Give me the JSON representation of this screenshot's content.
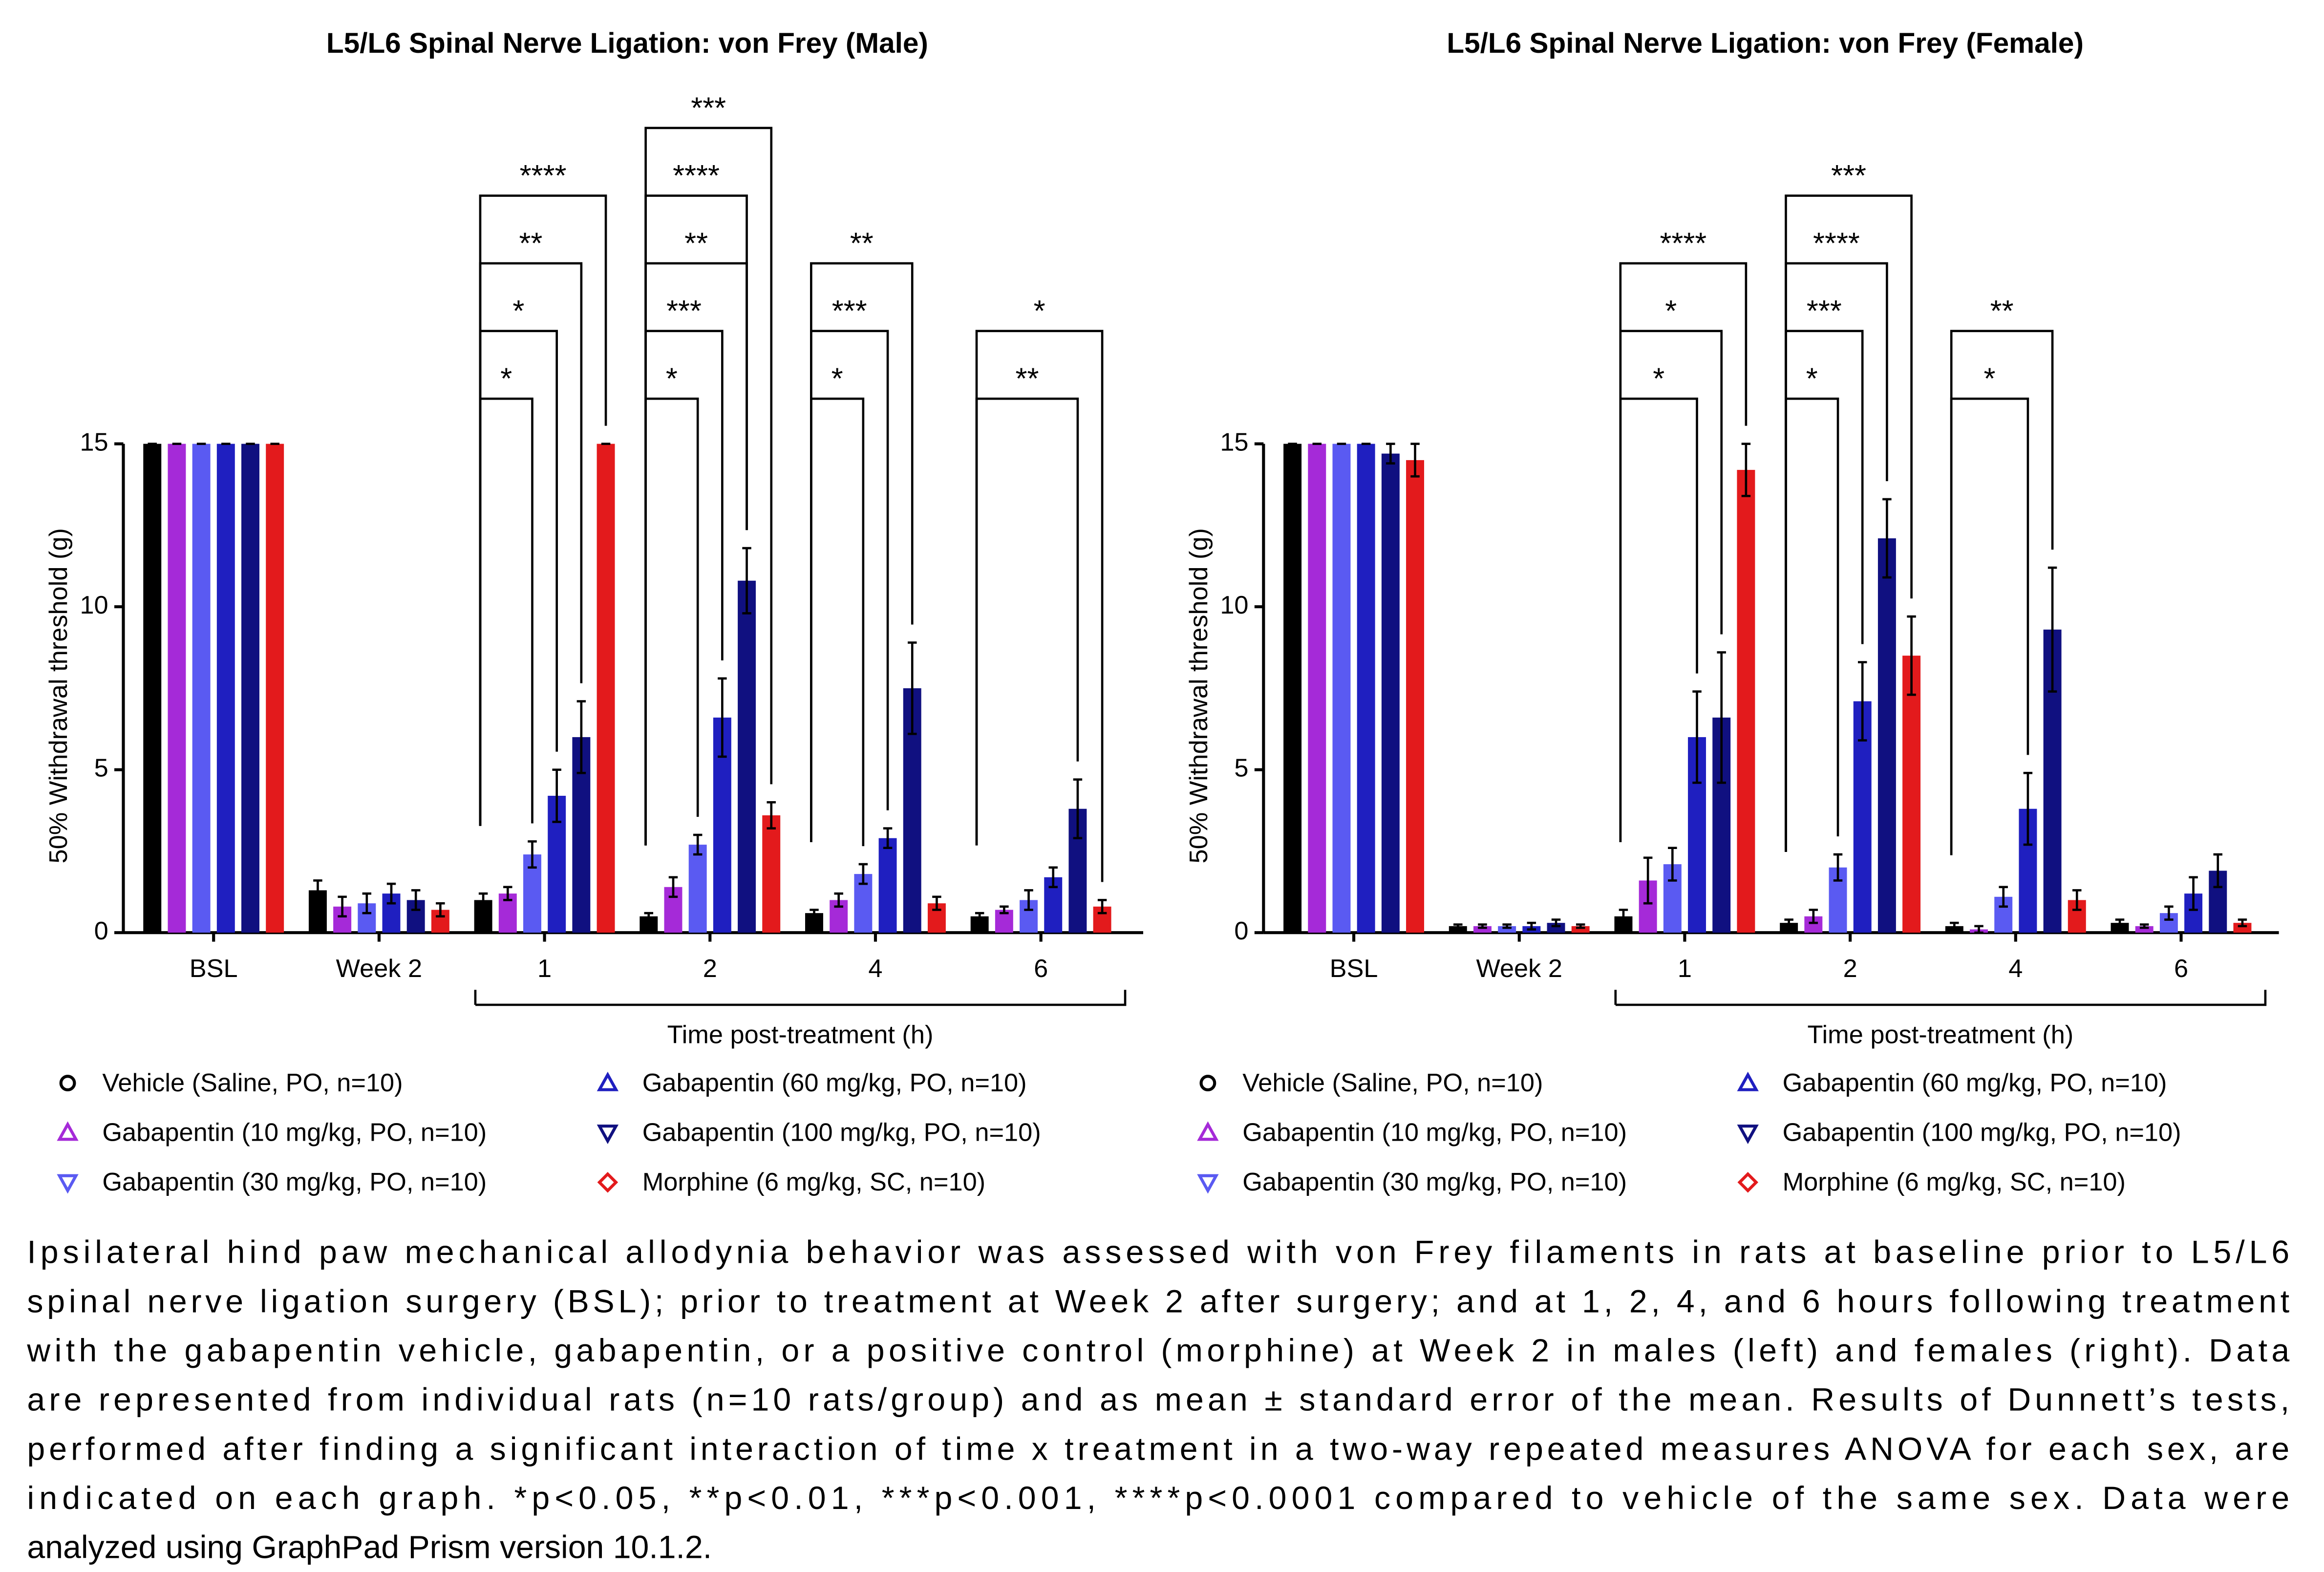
{
  "chart_data": [
    {
      "type": "bar",
      "title": "L5/L6 Spinal Nerve Ligation: von Frey (Male)",
      "ylabel": "50% Withdrawal threshold (g)",
      "xlabel": "Time post-treatment (h)",
      "categories": [
        "BSL",
        "Week 2",
        "1",
        "2",
        "4",
        "6"
      ],
      "ylim": [
        0,
        15
      ],
      "yticks": [
        0,
        5,
        10,
        15
      ],
      "series": [
        {
          "name": "Vehicle (Saline, PO, n=10)",
          "color": "#000000",
          "marker": "circle",
          "values": [
            15,
            1.3,
            1.0,
            0.5,
            0.6,
            0.5
          ],
          "errors": [
            0,
            0.3,
            0.2,
            0.1,
            0.1,
            0.1
          ]
        },
        {
          "name": "Gabapentin (10 mg/kg, PO, n=10)",
          "color": "#a52ad8",
          "marker": "triangle-up",
          "values": [
            15,
            0.8,
            1.2,
            1.4,
            1.0,
            0.7
          ],
          "errors": [
            0,
            0.3,
            0.2,
            0.3,
            0.2,
            0.1
          ]
        },
        {
          "name": "Gabapentin (30 mg/kg, PO, n=10)",
          "color": "#5a5af2",
          "marker": "triangle-down",
          "values": [
            15,
            0.9,
            2.4,
            2.7,
            1.8,
            1.0
          ],
          "errors": [
            0,
            0.3,
            0.4,
            0.3,
            0.3,
            0.3
          ]
        },
        {
          "name": "Gabapentin (60 mg/kg, PO, n=10)",
          "color": "#1f1fc0",
          "marker": "triangle-up",
          "values": [
            15,
            1.2,
            4.2,
            6.6,
            2.9,
            1.7
          ],
          "errors": [
            0,
            0.3,
            0.8,
            1.2,
            0.3,
            0.3
          ]
        },
        {
          "name": "Gabapentin (100 mg/kg, PO, n=10)",
          "color": "#101080",
          "marker": "triangle-down",
          "values": [
            15,
            1.0,
            6.0,
            10.8,
            7.5,
            3.8
          ],
          "errors": [
            0,
            0.3,
            1.1,
            1.0,
            1.4,
            0.9
          ]
        },
        {
          "name": "Morphine (6 mg/kg, SC, n=10)",
          "color": "#e31a1c",
          "marker": "diamond",
          "values": [
            15,
            0.7,
            15,
            3.6,
            0.9,
            0.8
          ],
          "errors": [
            0,
            0.2,
            0,
            0.4,
            0.2,
            0.2
          ]
        }
      ],
      "significance": [
        {
          "category": "1",
          "series": "Gabapentin (30 mg/kg, PO, n=10)",
          "label": "*"
        },
        {
          "category": "1",
          "series": "Gabapentin (60 mg/kg, PO, n=10)",
          "label": "*"
        },
        {
          "category": "1",
          "series": "Gabapentin (100 mg/kg, PO, n=10)",
          "label": "**"
        },
        {
          "category": "1",
          "series": "Morphine (6 mg/kg, SC, n=10)",
          "label": "****"
        },
        {
          "category": "2",
          "series": "Gabapentin (30 mg/kg, PO, n=10)",
          "label": "*"
        },
        {
          "category": "2",
          "series": "Gabapentin (60 mg/kg, PO, n=10)",
          "label": "***"
        },
        {
          "category": "2",
          "series": "Gabapentin (100 mg/kg, PO, n=10)",
          "label": "**"
        },
        {
          "category": "2",
          "series": "Gabapentin (100 mg/kg, PO, n=10)",
          "label": "****"
        },
        {
          "category": "2",
          "series": "Morphine (6 mg/kg, SC, n=10)",
          "label": "***"
        },
        {
          "category": "4",
          "series": "Gabapentin (30 mg/kg, PO, n=10)",
          "label": "*"
        },
        {
          "category": "4",
          "series": "Gabapentin (60 mg/kg, PO, n=10)",
          "label": "***"
        },
        {
          "category": "4",
          "series": "Gabapentin (100 mg/kg, PO, n=10)",
          "label": "**"
        },
        {
          "category": "6",
          "series": "Gabapentin (100 mg/kg, PO, n=10)",
          "label": "**"
        },
        {
          "category": "6",
          "series": "Morphine (6 mg/kg, SC, n=10)",
          "label": "*"
        }
      ]
    },
    {
      "type": "bar",
      "title": "L5/L6 Spinal Nerve Ligation: von Frey (Female)",
      "ylabel": "50% Withdrawal threshold (g)",
      "xlabel": "Time post-treatment (h)",
      "categories": [
        "BSL",
        "Week 2",
        "1",
        "2",
        "4",
        "6"
      ],
      "ylim": [
        0,
        15
      ],
      "yticks": [
        0,
        5,
        10,
        15
      ],
      "series": [
        {
          "name": "Vehicle (Saline, PO, n=10)",
          "color": "#000000",
          "marker": "circle",
          "values": [
            15,
            0.2,
            0.5,
            0.3,
            0.2,
            0.3
          ],
          "errors": [
            0,
            0.05,
            0.2,
            0.1,
            0.1,
            0.1
          ]
        },
        {
          "name": "Gabapentin (10 mg/kg, PO, n=10)",
          "color": "#a52ad8",
          "marker": "triangle-up",
          "values": [
            15,
            0.2,
            1.6,
            0.5,
            0.1,
            0.2
          ],
          "errors": [
            0,
            0.05,
            0.7,
            0.2,
            0.1,
            0.05
          ]
        },
        {
          "name": "Gabapentin (30 mg/kg, PO, n=10)",
          "color": "#5a5af2",
          "marker": "triangle-down",
          "values": [
            15,
            0.2,
            2.1,
            2.0,
            1.1,
            0.6
          ],
          "errors": [
            0,
            0.05,
            0.5,
            0.4,
            0.3,
            0.2
          ]
        },
        {
          "name": "Gabapentin (60 mg/kg, PO, n=10)",
          "color": "#1f1fc0",
          "marker": "triangle-up",
          "values": [
            15,
            0.2,
            6.0,
            7.1,
            3.8,
            1.2
          ],
          "errors": [
            0,
            0.1,
            1.4,
            1.2,
            1.1,
            0.5
          ]
        },
        {
          "name": "Gabapentin (100 mg/kg, PO, n=10)",
          "color": "#101080",
          "marker": "triangle-down",
          "values": [
            14.7,
            0.3,
            6.6,
            12.1,
            9.3,
            1.9
          ],
          "errors": [
            0.3,
            0.1,
            2.0,
            1.2,
            1.9,
            0.5
          ]
        },
        {
          "name": "Morphine (6 mg/kg, SC, n=10)",
          "color": "#e31a1c",
          "marker": "diamond",
          "values": [
            14.5,
            0.2,
            14.2,
            8.5,
            1.0,
            0.3
          ],
          "errors": [
            0.5,
            0.05,
            0.8,
            1.2,
            0.3,
            0.1
          ]
        }
      ],
      "significance": [
        {
          "category": "1",
          "series": "Gabapentin (60 mg/kg, PO, n=10)",
          "label": "*"
        },
        {
          "category": "1",
          "series": "Gabapentin (100 mg/kg, PO, n=10)",
          "label": "*"
        },
        {
          "category": "1",
          "series": "Morphine (6 mg/kg, SC, n=10)",
          "label": "****"
        },
        {
          "category": "2",
          "series": "Gabapentin (30 mg/kg, PO, n=10)",
          "label": "*"
        },
        {
          "category": "2",
          "series": "Gabapentin (60 mg/kg, PO, n=10)",
          "label": "***"
        },
        {
          "category": "2",
          "series": "Gabapentin (100 mg/kg, PO, n=10)",
          "label": "****"
        },
        {
          "category": "2",
          "series": "Morphine (6 mg/kg, SC, n=10)",
          "label": "***"
        },
        {
          "category": "4",
          "series": "Gabapentin (60 mg/kg, PO, n=10)",
          "label": "*"
        },
        {
          "category": "4",
          "series": "Gabapentin (100 mg/kg, PO, n=10)",
          "label": "**"
        }
      ]
    }
  ],
  "caption": {
    "lines": [
      "Ipsilateral hind paw mechanical allodynia behavior was assessed with von Frey filaments in rats at baseline prior to L5/L6",
      "spinal nerve ligation surgery (BSL); prior to treatment at Week 2 after surgery; and at 1, 2, 4, and 6 hours following treatment",
      "with the gabapentin vehicle, gabapentin, or a positive control (morphine) at Week 2 in males (left) and females (right). Data",
      "are represented from individual rats (n=10 rats/group) and as mean ± standard error of the mean. Results of Dunnett’s tests,",
      "performed after finding a significant interaction of time x treatment in a two-way repeated measures ANOVA for each sex, are",
      "indicated on each graph. *p<0.05, **p<0.01, ***p<0.001, ****p<0.0001 compared to vehicle of the same sex. Data were",
      "analyzed using GraphPad Prism version 10.1.2."
    ]
  }
}
